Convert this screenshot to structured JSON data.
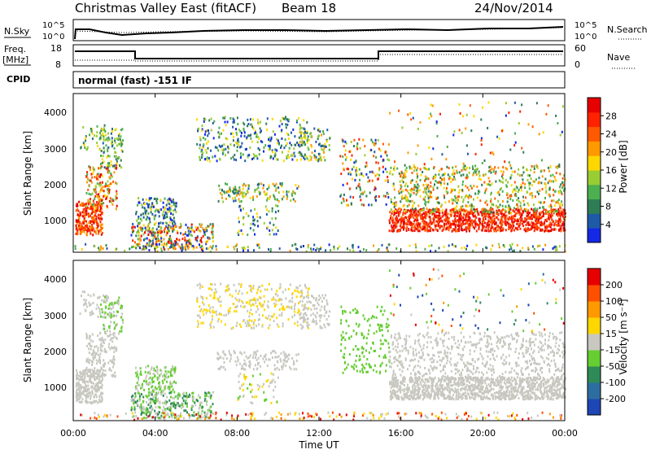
{
  "header": {
    "title": "Christmas Valley East (fitACF)",
    "beam": "Beam 18",
    "date": "24/Nov/2014"
  },
  "panels": {
    "nsky_label": "N.Sky",
    "nsearch_label": "N.Search",
    "scale_top": "10^5",
    "scale_bottom": "10^0",
    "freq_label": "Freq.",
    "freq_unit": "[MHz]",
    "freq_ticks": [
      "18",
      "8"
    ],
    "nave_label": "Nave",
    "nave_ticks": [
      "60",
      "0"
    ],
    "cpid_label": "CPID",
    "cpid_value": "normal (fast) -151 IF"
  },
  "chart_data": [
    {
      "type": "heatmap",
      "name": "power",
      "ylabel": "Slant Range [km]",
      "xlabel": "Time UT",
      "yticks": [
        "1000",
        "2000",
        "3000",
        "4000"
      ],
      "ylim": [
        200,
        4500
      ],
      "xticks": [
        "00:00",
        "04:00",
        "08:00",
        "12:00",
        "16:00",
        "20:00",
        "00:00"
      ],
      "colorbar": {
        "label": "Power [dB]",
        "ticks": [
          "4",
          "8",
          "12",
          "16",
          "20",
          "24",
          "28"
        ],
        "colors": [
          "#1428e6",
          "#1e5aa8",
          "#2e7d55",
          "#4caf50",
          "#9acd32",
          "#ffd700",
          "#ff9900",
          "#ff5a00",
          "#ff2200",
          "#e60000"
        ]
      }
    },
    {
      "type": "heatmap",
      "name": "velocity",
      "ylabel": "Slant Range [km]",
      "xlabel": "Time UT",
      "yticks": [
        "1000",
        "2000",
        "3000",
        "4000"
      ],
      "ylim": [
        200,
        4500
      ],
      "xticks": [
        "00:00",
        "04:00",
        "08:00",
        "12:00",
        "16:00",
        "20:00",
        "00:00"
      ],
      "colorbar": {
        "label": "Velocity [m s⁻¹]",
        "ticks": [
          "200",
          "100",
          "50",
          "15",
          "-15",
          "-50",
          "-100",
          "-200"
        ],
        "colors": [
          "#1e46b4",
          "#2d6ea0",
          "#2e8b57",
          "#66cd32",
          "#c8c8c0",
          "#ffd700",
          "#ff9900",
          "#ff5000",
          "#e60000"
        ]
      }
    }
  ]
}
